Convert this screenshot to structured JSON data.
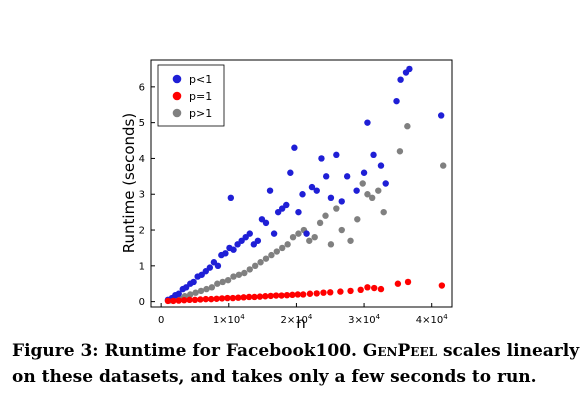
{
  "chart_data": {
    "type": "scatter",
    "xlabel": "n",
    "ylabel": "Runtime (seconds)",
    "xlim": [
      -1500,
      43000
    ],
    "ylim": [
      -0.15,
      6.75
    ],
    "yticks": [
      0,
      1,
      2,
      3,
      4,
      5,
      6
    ],
    "xticks": [
      {
        "value": 0,
        "mantissa": "0",
        "exponent": ""
      },
      {
        "value": 10000,
        "mantissa": "1×10",
        "exponent": "4"
      },
      {
        "value": 20000,
        "mantissa": "2×10",
        "exponent": "4"
      },
      {
        "value": 30000,
        "mantissa": "3×10",
        "exponent": "4"
      },
      {
        "value": 40000,
        "mantissa": "4×10",
        "exponent": "4"
      }
    ],
    "legend_position": "top-left",
    "series": [
      {
        "name": "p<1",
        "color": "#1f1fd6",
        "x": [
          1000,
          1600,
          2100,
          2600,
          3200,
          3700,
          4300,
          4800,
          5400,
          6000,
          6600,
          7200,
          7800,
          8400,
          8900,
          9500,
          10100,
          10300,
          10700,
          11300,
          11900,
          12500,
          13100,
          13700,
          14300,
          14900,
          15500,
          16100,
          16700,
          17300,
          17900,
          18500,
          19100,
          19700,
          20300,
          20900,
          21500,
          22300,
          23000,
          23700,
          24400,
          25100,
          25900,
          26700,
          27500,
          28900,
          30000,
          30500,
          31400,
          32500,
          33200,
          34800,
          35400,
          36200,
          36700,
          41400
        ],
        "y": [
          0.05,
          0.1,
          0.18,
          0.22,
          0.35,
          0.4,
          0.5,
          0.55,
          0.7,
          0.75,
          0.85,
          0.95,
          1.1,
          1.0,
          1.3,
          1.35,
          1.5,
          2.9,
          1.45,
          1.6,
          1.7,
          1.8,
          1.9,
          1.6,
          1.7,
          2.3,
          2.2,
          3.1,
          1.9,
          2.5,
          2.6,
          2.7,
          3.6,
          4.3,
          2.5,
          3.0,
          1.9,
          3.2,
          3.1,
          4.0,
          3.5,
          2.9,
          4.1,
          2.8,
          3.5,
          3.1,
          3.6,
          5.0,
          4.1,
          3.8,
          3.3,
          5.6,
          6.2,
          6.4,
          6.5,
          5.2
        ]
      },
      {
        "name": "p=1",
        "color": "#ff0000",
        "x": [
          1000,
          1800,
          2600,
          3400,
          4200,
          5000,
          5800,
          6600,
          7400,
          8200,
          9000,
          9800,
          10600,
          11400,
          12200,
          13000,
          13800,
          14600,
          15400,
          16200,
          17000,
          17800,
          18600,
          19400,
          20200,
          21000,
          22000,
          23000,
          24000,
          25000,
          26500,
          28000,
          29500,
          30500,
          31500,
          32500,
          35000,
          36500,
          41500
        ],
        "y": [
          0.02,
          0.02,
          0.03,
          0.04,
          0.05,
          0.05,
          0.06,
          0.07,
          0.07,
          0.08,
          0.09,
          0.1,
          0.1,
          0.11,
          0.12,
          0.13,
          0.13,
          0.14,
          0.15,
          0.16,
          0.17,
          0.17,
          0.18,
          0.19,
          0.2,
          0.2,
          0.22,
          0.23,
          0.25,
          0.26,
          0.28,
          0.3,
          0.33,
          0.4,
          0.38,
          0.35,
          0.5,
          0.55,
          0.45
        ]
      },
      {
        "name": "p>1",
        "color": "#808080",
        "x": [
          1200,
          1900,
          2700,
          3500,
          4300,
          5100,
          5900,
          6700,
          7500,
          8300,
          9100,
          9900,
          10700,
          11500,
          12300,
          13100,
          13900,
          14700,
          15500,
          16300,
          17100,
          17900,
          18700,
          19500,
          20300,
          21100,
          21900,
          22700,
          23500,
          24300,
          25100,
          25900,
          26700,
          28000,
          29000,
          29800,
          30500,
          31200,
          32100,
          32900,
          35300,
          36400,
          41700
        ],
        "y": [
          0.03,
          0.06,
          0.1,
          0.15,
          0.2,
          0.25,
          0.3,
          0.35,
          0.4,
          0.5,
          0.55,
          0.6,
          0.7,
          0.75,
          0.8,
          0.9,
          1.0,
          1.1,
          1.2,
          1.3,
          1.4,
          1.5,
          1.6,
          1.8,
          1.9,
          2.0,
          1.7,
          1.8,
          2.2,
          2.4,
          1.6,
          2.6,
          2.0,
          1.7,
          2.3,
          3.3,
          3.0,
          2.9,
          3.1,
          2.5,
          4.2,
          4.9,
          3.8
        ]
      }
    ]
  },
  "caption": {
    "label": "Figure 3: Runtime for Facebook100.",
    "method": "GenPeel",
    "text": "scales linearly on these datasets, and takes only a few seconds to run."
  }
}
